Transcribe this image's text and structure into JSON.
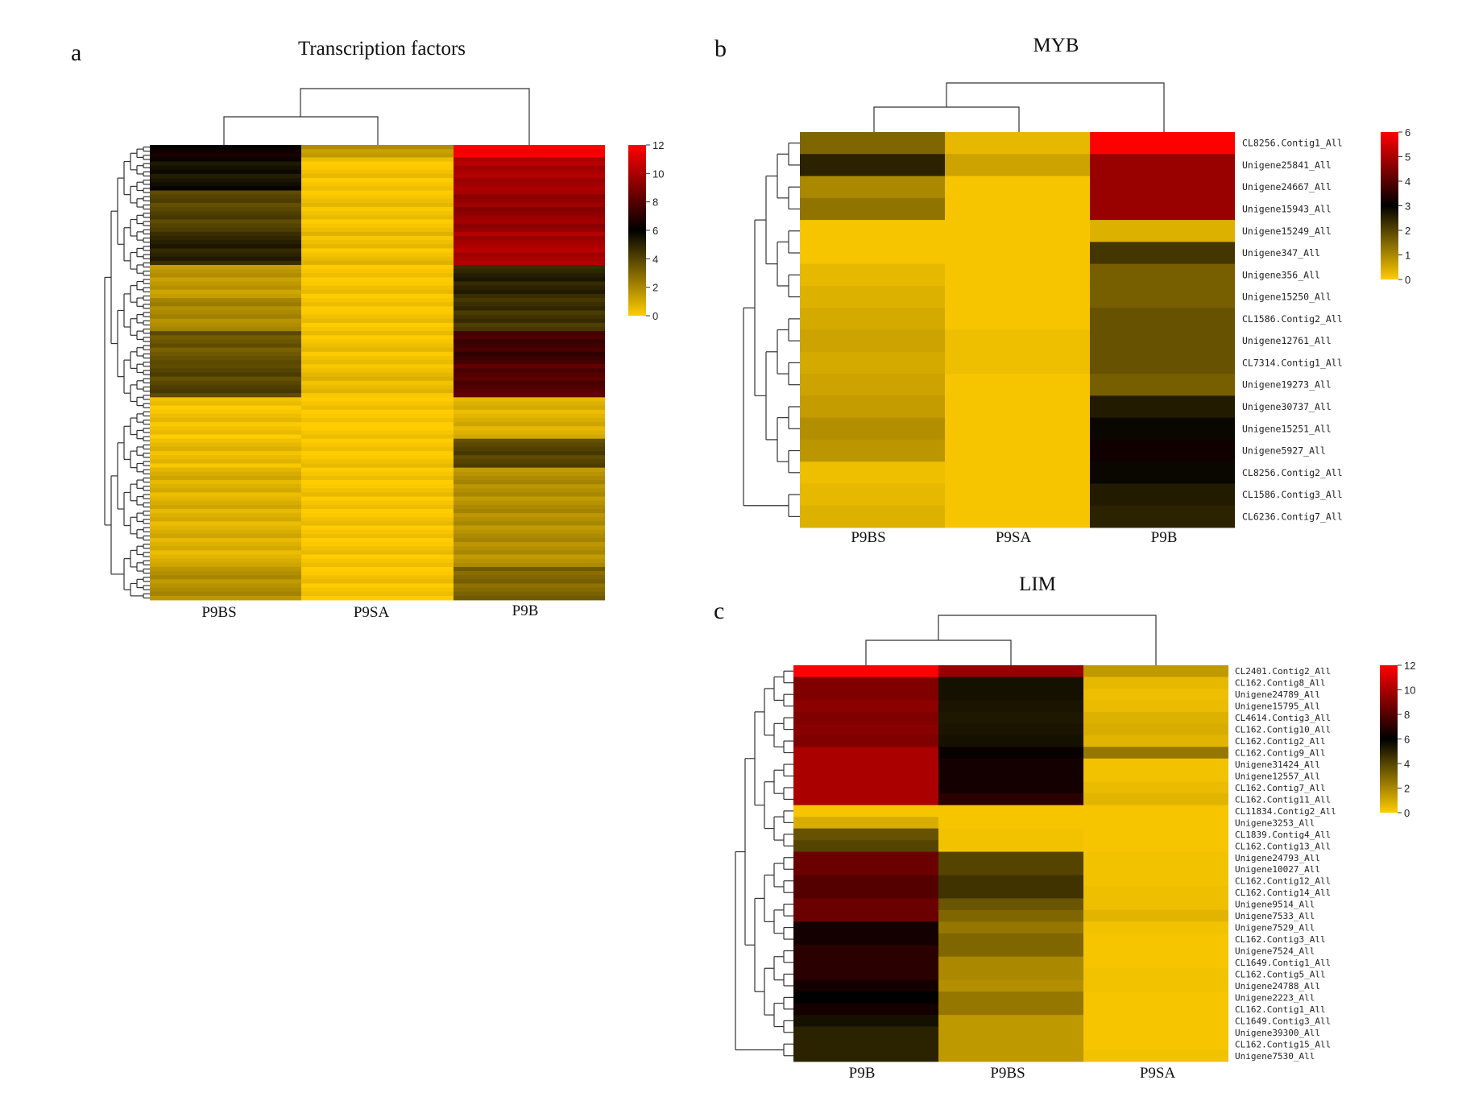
{
  "chart_data": [
    {
      "type": "heatmap",
      "panel": "a",
      "title": "Transcription factors",
      "columns": [
        "P9BS",
        "P9SA",
        "P9B"
      ],
      "colorbar": {
        "min": 0,
        "max": 12,
        "ticks": [
          "0",
          "2",
          "4",
          "6",
          "8",
          "10",
          "12"
        ]
      },
      "row_count": 110,
      "row_blocks": [
        {
          "rows": 3,
          "values": [
            6.5,
            1.5,
            12
          ]
        },
        {
          "rows": 8,
          "values": [
            5.5,
            0.2,
            10
          ]
        },
        {
          "rows": 10,
          "values": [
            4.0,
            0.3,
            9.5
          ]
        },
        {
          "rows": 8,
          "values": [
            5.0,
            0.4,
            10
          ]
        },
        {
          "rows": 8,
          "values": [
            1.5,
            0.2,
            5.0
          ]
        },
        {
          "rows": 8,
          "values": [
            2.0,
            0.2,
            4.5
          ]
        },
        {
          "rows": 8,
          "values": [
            3.5,
            0.3,
            7.5
          ]
        },
        {
          "rows": 8,
          "values": [
            4.0,
            0.5,
            8.0
          ]
        },
        {
          "rows": 10,
          "values": [
            0.3,
            0.1,
            0.8
          ]
        },
        {
          "rows": 7,
          "values": [
            0.5,
            0.2,
            4.0
          ]
        },
        {
          "rows": 24,
          "values": [
            0.8,
            0.2,
            1.8
          ]
        },
        {
          "rows": 8,
          "values": [
            1.8,
            0.2,
            3.0
          ]
        }
      ]
    },
    {
      "type": "heatmap",
      "panel": "b",
      "title": "MYB",
      "columns": [
        "P9BS",
        "P9SA",
        "P9B"
      ],
      "colorbar": {
        "min": 0,
        "max": 6,
        "ticks": [
          "0",
          "1",
          "2",
          "3",
          "4",
          "5",
          "6"
        ]
      },
      "rows": [
        "CL8256.Contig1_All",
        "Unigene25841_All",
        "Unigene24667_All",
        "Unigene15943_All",
        "Unigene15249_All",
        "Unigene347_All",
        "Unigene356_All",
        "Unigene15250_All",
        "CL1586.Contig2_All",
        "Unigene12761_All",
        "CL7314.Contig1_All",
        "Unigene19273_All",
        "Unigene30737_All",
        "Unigene15251_All",
        "Unigene5927_All",
        "CL8256.Contig2_All",
        "CL1586.Contig3_All",
        "CL6236.Contig7_All"
      ],
      "values": [
        [
          1.5,
          0.3,
          6.0
        ],
        [
          2.5,
          0.6,
          4.8
        ],
        [
          1.0,
          0.1,
          4.8
        ],
        [
          1.3,
          0.1,
          4.8
        ],
        [
          0.1,
          0.1,
          0.4
        ],
        [
          0.1,
          0.1,
          2.2
        ],
        [
          0.3,
          0.1,
          1.6
        ],
        [
          0.4,
          0.1,
          1.6
        ],
        [
          0.5,
          0.1,
          1.8
        ],
        [
          0.6,
          0.2,
          1.8
        ],
        [
          0.5,
          0.2,
          1.8
        ],
        [
          0.6,
          0.1,
          1.6
        ],
        [
          0.7,
          0.1,
          2.6
        ],
        [
          0.9,
          0.1,
          2.9
        ],
        [
          0.8,
          0.1,
          3.2
        ],
        [
          0.2,
          0.1,
          2.9
        ],
        [
          0.3,
          0.1,
          2.6
        ],
        [
          0.4,
          0.1,
          2.5
        ]
      ]
    },
    {
      "type": "heatmap",
      "panel": "c",
      "title": "LIM",
      "columns": [
        "P9B",
        "P9BS",
        "P9SA"
      ],
      "colorbar": {
        "min": 0,
        "max": 12,
        "ticks": [
          "0",
          "2",
          "4",
          "6",
          "8",
          "10",
          "12"
        ]
      },
      "rows": [
        "CL2401.Contig2_All",
        "CL162.Contig8_All",
        "Unigene24789_All",
        "Unigene15795_All",
        "CL4614.Contig3_All",
        "CL162.Contig10_All",
        "CL162.Contig2_All",
        "CL162.Contig9_All",
        "Unigene31424_All",
        "Unigene12557_All",
        "CL162.Contig7_All",
        "CL162.Contig11_All",
        "CL11834.Contig2_All",
        "Unigene3253_All",
        "CL1839.Contig4_All",
        "CL162.Contig13_All",
        "Unigene24793_All",
        "Unigene10027_All",
        "CL162.Contig12_All",
        "CL162.Contig14_All",
        "Unigene9514_All",
        "Unigene7533_All",
        "Unigene7529_All",
        "CL162.Contig3_All",
        "Unigene7524_All",
        "CL1649.Contig1_All",
        "CL162.Contig5_All",
        "Unigene24788_All",
        "Unigene2223_All",
        "CL162.Contig1_All",
        "CL1649.Contig3_All",
        "Unigene39300_All",
        "CL162.Contig15_All",
        "Unigene7530_All"
      ],
      "values": [
        [
          12,
          9.5,
          1.5
        ],
        [
          9.0,
          5.5,
          0.6
        ],
        [
          9.0,
          5.5,
          0.4
        ],
        [
          9.3,
          5.4,
          0.5
        ],
        [
          9.0,
          5.3,
          0.8
        ],
        [
          9.2,
          5.4,
          0.9
        ],
        [
          9.0,
          5.5,
          0.7
        ],
        [
          10.0,
          6.2,
          2.5
        ],
        [
          10.0,
          6.5,
          0.3
        ],
        [
          10.0,
          6.5,
          0.3
        ],
        [
          10.0,
          6.5,
          0.5
        ],
        [
          10.0,
          7.0,
          0.7
        ],
        [
          0.2,
          0.2,
          0.2
        ],
        [
          0.9,
          0.2,
          0.2
        ],
        [
          3.6,
          0.3,
          0.2
        ],
        [
          4.0,
          0.3,
          0.2
        ],
        [
          8.5,
          4.0,
          0.3
        ],
        [
          8.5,
          4.0,
          0.3
        ],
        [
          8.0,
          4.5,
          0.3
        ],
        [
          8.0,
          4.5,
          0.4
        ],
        [
          8.5,
          3.5,
          0.4
        ],
        [
          8.5,
          3.0,
          0.7
        ],
        [
          6.5,
          2.5,
          0.3
        ],
        [
          6.5,
          3.0,
          0.2
        ],
        [
          7.0,
          3.0,
          0.2
        ],
        [
          7.0,
          2.0,
          0.2
        ],
        [
          7.0,
          2.0,
          0.3
        ],
        [
          6.5,
          1.8,
          0.3
        ],
        [
          6.0,
          2.5,
          0.2
        ],
        [
          6.5,
          2.5,
          0.2
        ],
        [
          5.5,
          1.5,
          0.2
        ],
        [
          5.0,
          1.5,
          0.2
        ],
        [
          5.0,
          1.5,
          0.2
        ],
        [
          5.0,
          1.5,
          0.3
        ]
      ]
    }
  ]
}
